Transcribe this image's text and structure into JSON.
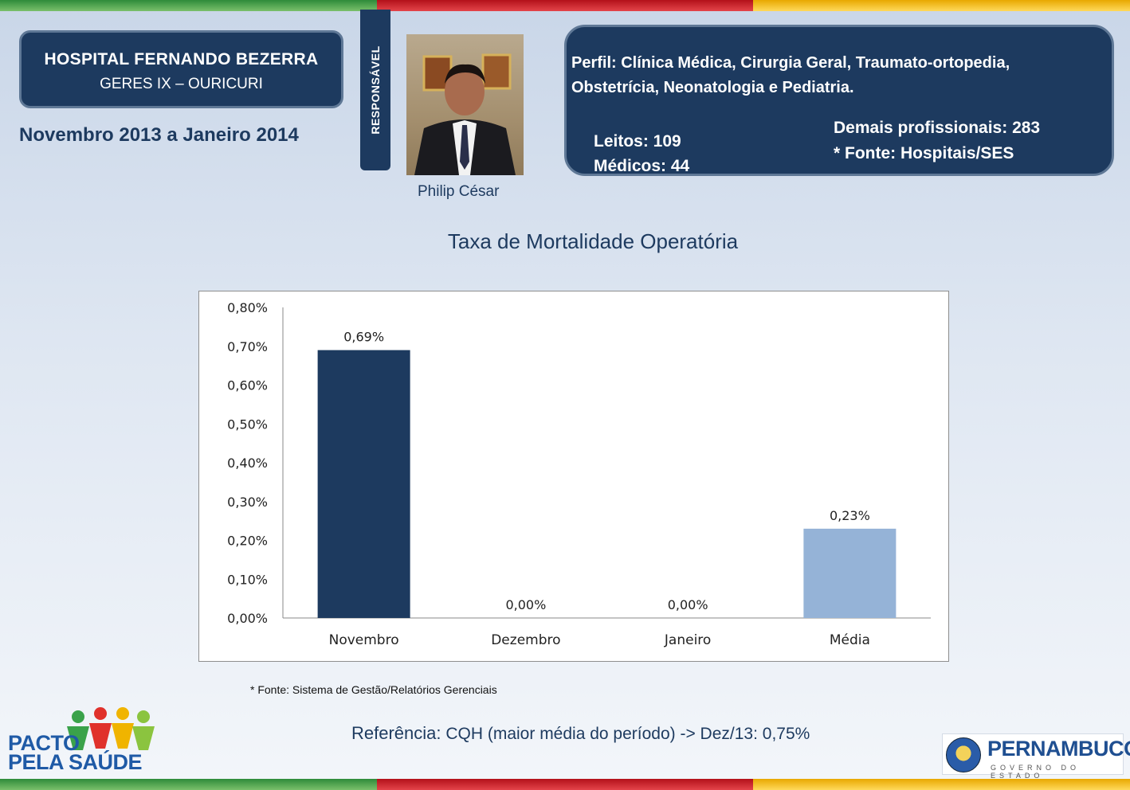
{
  "header": {
    "hospital_name": "HOSPITAL FERNANDO BEZERRA",
    "geres": "GERES IX – OURICURI",
    "period": "Novembro 2013 a Janeiro 2014",
    "responsible_label": "RESPONSÁVEL",
    "responsible_name": "Philip César"
  },
  "profile": {
    "text": "Perfil: Clínica Médica, Cirurgia Geral, Traumato-ortopedia, Obstetrícia, Neonatologia e Pediatria.",
    "leitos": "Leitos: 109",
    "medicos": "Médicos: 44",
    "demais": "Demais profissionais: 283",
    "fonte": "* Fonte: Hospitais/SES"
  },
  "chart_data": {
    "type": "bar",
    "title": "Taxa de Mortalidade Operatória",
    "categories": [
      "Novembro",
      "Dezembro",
      "Janeiro",
      "Média"
    ],
    "values": [
      0.69,
      0.0,
      0.0,
      0.23
    ],
    "value_labels": [
      "0,69%",
      "0,00%",
      "0,00%",
      "0,23%"
    ],
    "bar_colors": [
      "#1d3a5f",
      "#1d3a5f",
      "#1d3a5f",
      "#95b3d7"
    ],
    "ylim": [
      0,
      0.8
    ],
    "yticks": [
      0.8,
      0.7,
      0.6,
      0.5,
      0.4,
      0.3,
      0.2,
      0.1,
      0.0
    ],
    "ytick_labels": [
      "0,80%",
      "0,70%",
      "0,60%",
      "0,50%",
      "0,40%",
      "0,30%",
      "0,20%",
      "0,10%",
      "0,00%"
    ],
    "xlabel": "",
    "ylabel": "",
    "grid": false,
    "legend": "none"
  },
  "chart_source": "* Fonte: Sistema de Gestão/Relatórios Gerenciais",
  "reference": {
    "label": "Referência:",
    "text": " CQH (maior média do período) -> Dez/13: 0,75%"
  },
  "logos": {
    "pacto_line1": "PACTO",
    "pacto_line2": "PELA SAÚDE",
    "state_name": "PERNAMBUCO",
    "state_sub": "GOVERNO DO ESTADO"
  }
}
